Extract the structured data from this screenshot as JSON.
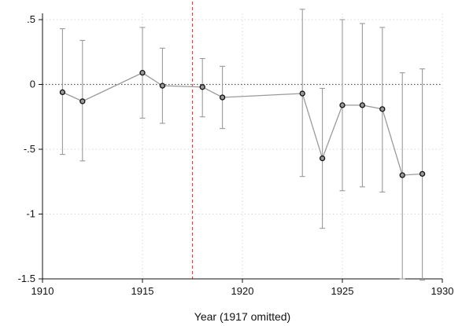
{
  "chart_data": {
    "type": "scatter",
    "title": "",
    "xlabel": "Year (1917 omitted)",
    "ylabel": "",
    "xlim": [
      1910,
      1930
    ],
    "ylim": [
      -1.5,
      0.5
    ],
    "x_ticks": [
      1910,
      1915,
      1920,
      1925,
      1930
    ],
    "x_tick_labels": [
      "1910",
      "1915",
      "1920",
      "1925",
      "1930"
    ],
    "y_ticks": [
      0.5,
      0,
      -0.5,
      -1,
      -1.5
    ],
    "y_tick_labels": [
      ".5",
      "0",
      "-.5",
      "-1",
      "-1.5"
    ],
    "grid": true,
    "reference_lines": {
      "horizontal_y": 0,
      "vertical_x": 1917.5
    },
    "colors": {
      "line": "#9a9a9a",
      "error_bar": "#9a9a9a",
      "marker_fill": "#9a9a9a",
      "marker_edge": "#111111",
      "grid": "#d8d8d8",
      "zero_line": "#555555",
      "vertical_line": "#c0504d"
    },
    "series": [
      {
        "points": [
          {
            "x": 1911,
            "y": -0.06,
            "lo": -0.54,
            "hi": 0.43
          },
          {
            "x": 1912,
            "y": -0.13,
            "lo": -0.59,
            "hi": 0.34
          },
          {
            "x": 1915,
            "y": 0.09,
            "lo": -0.26,
            "hi": 0.44
          },
          {
            "x": 1916,
            "y": -0.01,
            "lo": -0.3,
            "hi": 0.28
          },
          {
            "x": 1918,
            "y": -0.02,
            "lo": -0.25,
            "hi": 0.2
          },
          {
            "x": 1919,
            "y": -0.1,
            "lo": -0.34,
            "hi": 0.14
          },
          {
            "x": 1923,
            "y": -0.07,
            "lo": -0.71,
            "hi": 0.58
          },
          {
            "x": 1924,
            "y": -0.57,
            "lo": -1.11,
            "hi": -0.03
          },
          {
            "x": 1925,
            "y": -0.16,
            "lo": -0.82,
            "hi": 0.5
          },
          {
            "x": 1926,
            "y": -0.16,
            "lo": -0.79,
            "hi": 0.47
          },
          {
            "x": 1927,
            "y": -0.19,
            "lo": -0.83,
            "hi": 0.44
          },
          {
            "x": 1928,
            "y": -0.7,
            "lo": -1.5,
            "hi": 0.09
          },
          {
            "x": 1929,
            "y": -0.69,
            "lo": -1.51,
            "hi": 0.12
          }
        ]
      }
    ]
  }
}
